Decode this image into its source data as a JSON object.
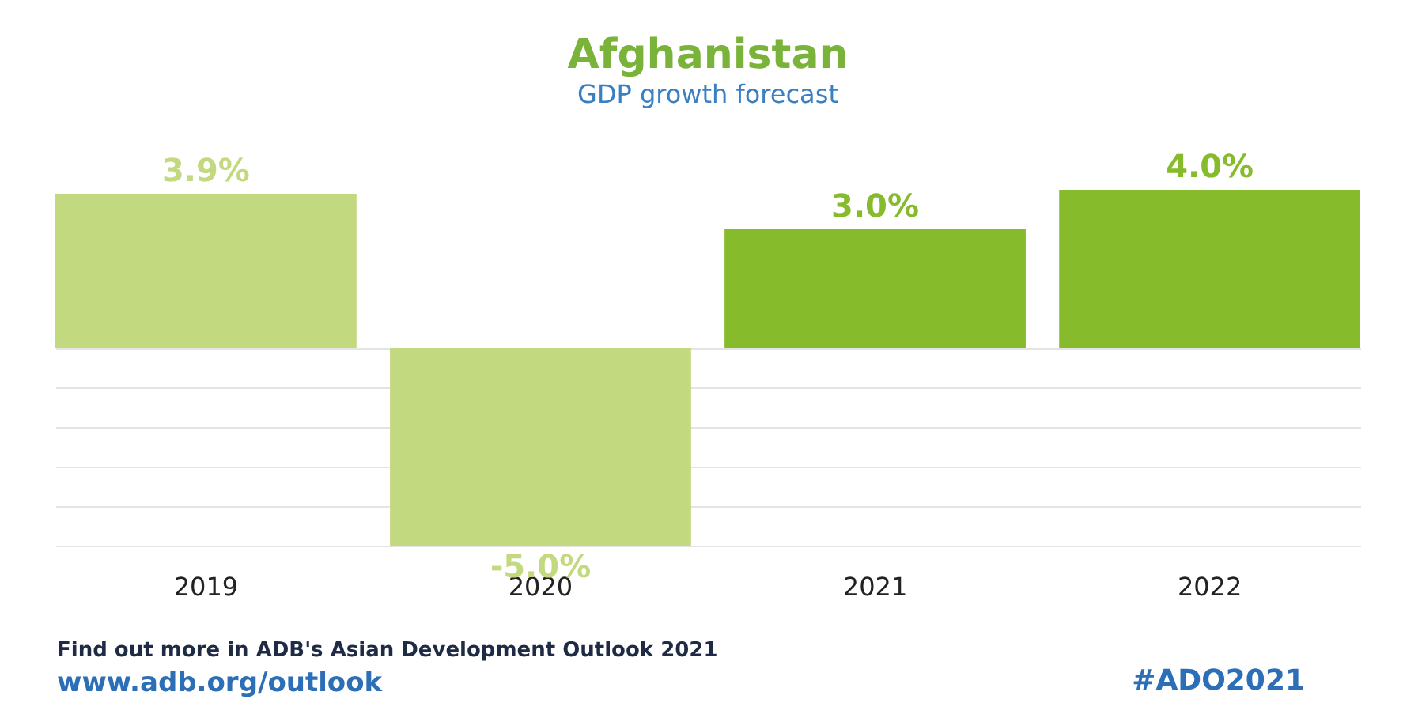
{
  "chart_data": {
    "type": "bar",
    "title": "Afghanistan",
    "subtitle": "GDP growth forecast",
    "categories": [
      "2019",
      "2020",
      "2021",
      "2022"
    ],
    "values": [
      3.9,
      -5.0,
      3.0,
      4.0
    ],
    "colors": [
      "#c3d97f",
      "#c3d97f",
      "#86bc2c",
      "#86bc2c"
    ],
    "value_labels": [
      "3.9%",
      "-5.0%",
      "3.0%",
      "4.0%"
    ],
    "ylim": [
      -5,
      4
    ],
    "yticks": [
      {
        "value": 0,
        "label": null
      },
      {
        "value": -1,
        "label": null
      },
      {
        "value": -2,
        "label": null
      },
      {
        "value": -3,
        "label": null
      },
      {
        "value": -4,
        "label": null
      },
      {
        "value": -5,
        "label": null
      }
    ],
    "grid": "y",
    "tick_labels": "x",
    "annotations": [
      "Find out more in ADB's Asian Development Outlook 2021",
      "www.adb.org/outlook",
      "#ADO2021"
    ]
  }
}
